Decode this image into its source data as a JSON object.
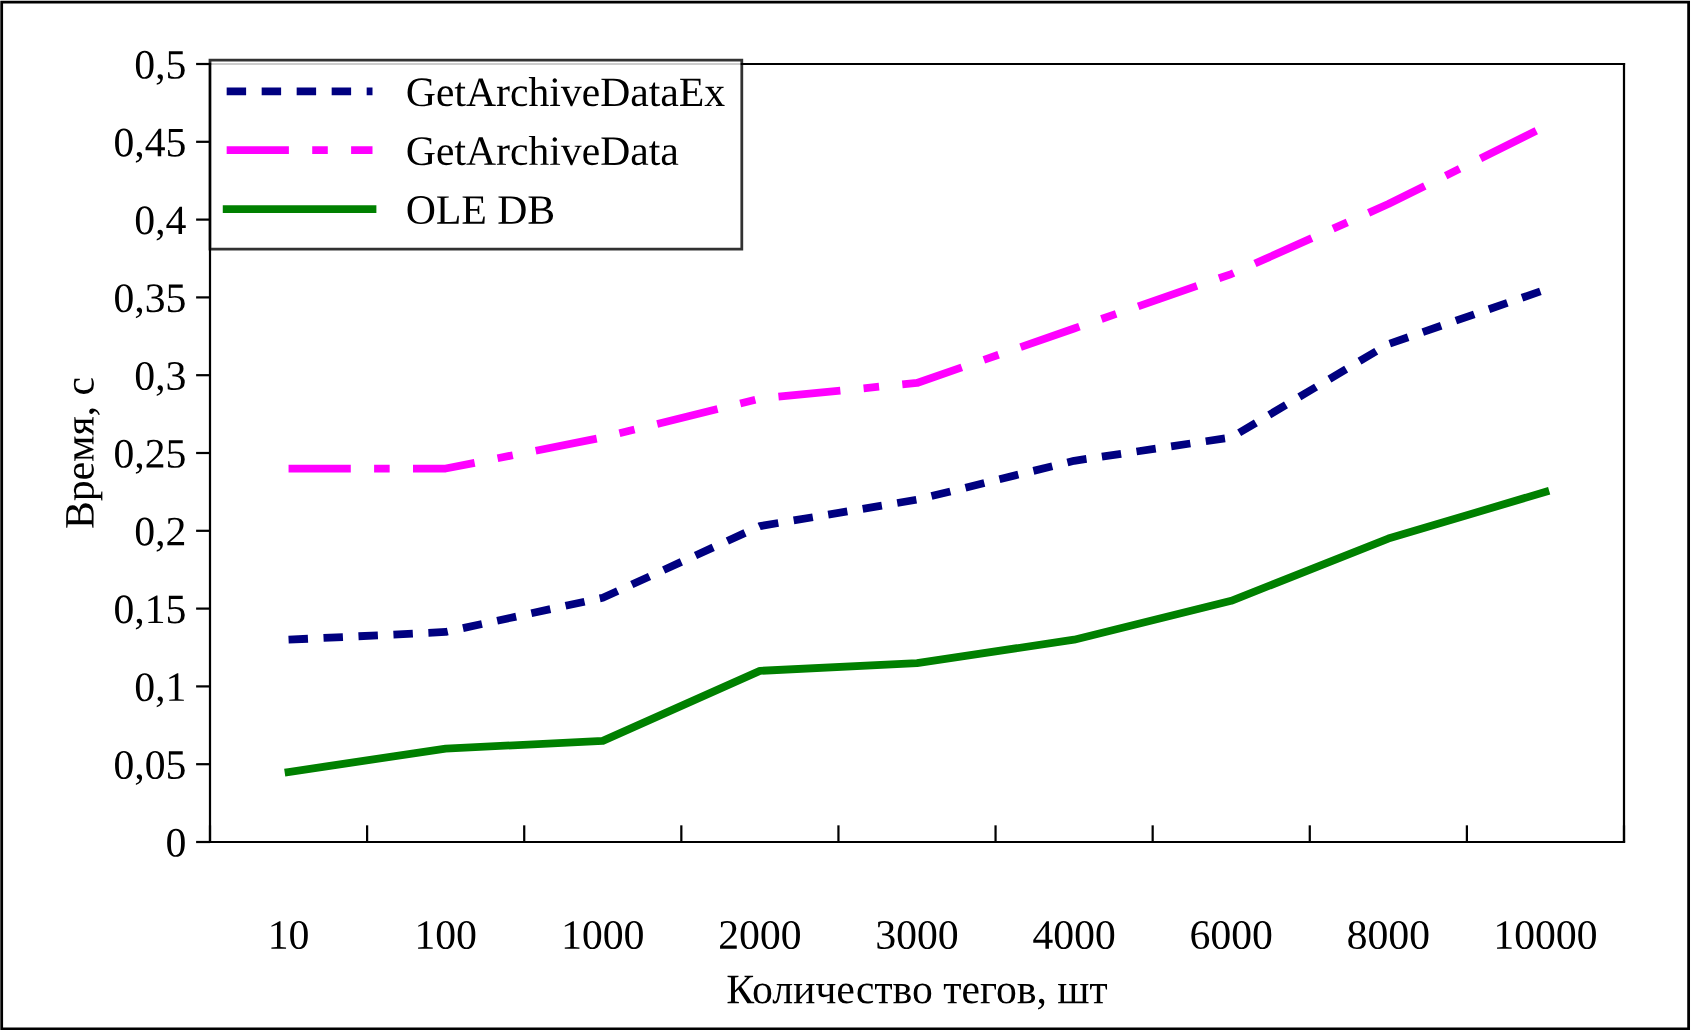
{
  "chart_data": {
    "type": "line",
    "xlabel": "Количество тегов, шт",
    "ylabel": "Время, с",
    "categories": [
      "10",
      "100",
      "1000",
      "2000",
      "3000",
      "4000",
      "6000",
      "8000",
      "10000"
    ],
    "series": [
      {
        "name": "GetArchiveDataEx",
        "color": "#000080",
        "line_style": "dotted",
        "values": [
          0.13,
          0.135,
          0.157,
          0.203,
          0.22,
          0.245,
          0.26,
          0.32,
          0.355
        ]
      },
      {
        "name": "GetArchiveData",
        "color": "#ff00ff",
        "line_style": "dashed",
        "values": [
          0.24,
          0.24,
          0.26,
          0.285,
          0.295,
          0.33,
          0.365,
          0.41,
          0.46
        ]
      },
      {
        "name": "OLE DB",
        "color": "#008000",
        "line_style": "solid",
        "values": [
          0.045,
          0.06,
          0.065,
          0.11,
          0.115,
          0.13,
          0.155,
          0.195,
          0.225
        ]
      }
    ],
    "ylim": [
      0,
      0.5
    ],
    "yticks": [
      {
        "value": 0,
        "label": "0"
      },
      {
        "value": 0.05,
        "label": "0,05"
      },
      {
        "value": 0.1,
        "label": "0,1"
      },
      {
        "value": 0.15,
        "label": "0,15"
      },
      {
        "value": 0.2,
        "label": "0,2"
      },
      {
        "value": 0.25,
        "label": "0,25"
      },
      {
        "value": 0.3,
        "label": "0,3"
      },
      {
        "value": 0.35,
        "label": "0,35"
      },
      {
        "value": 0.4,
        "label": "0,4"
      },
      {
        "value": 0.45,
        "label": "0,45"
      },
      {
        "value": 0.5,
        "label": "0,5"
      }
    ],
    "grid": false,
    "legend": "top left",
    "marker": "none"
  }
}
